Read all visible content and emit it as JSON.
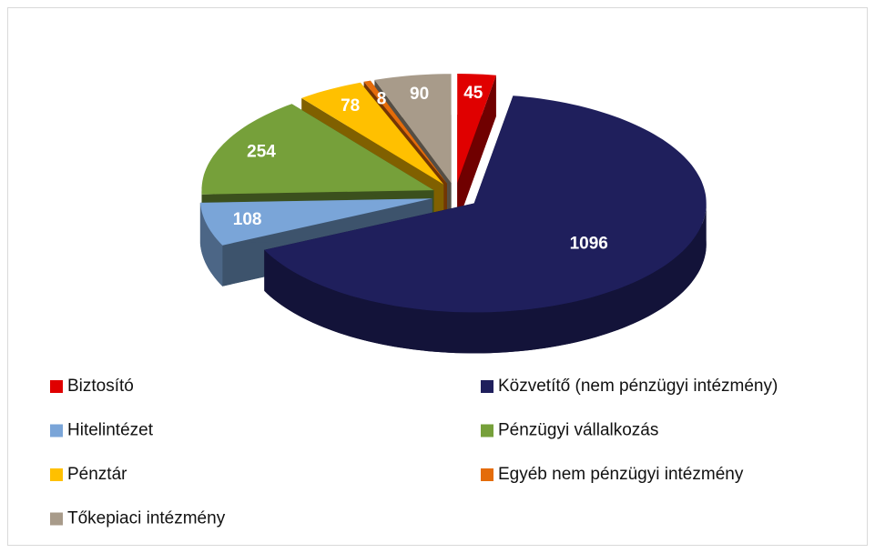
{
  "chart_data": {
    "type": "pie",
    "categories": [
      "Biztosító",
      "Közvetítő (nem pénzügyi intézmény)",
      "Hitelintézet",
      "Pénzügyi vállalkozás",
      "Pénztár",
      "Egyéb nem pénzügyi intézmény",
      "Tőkepiaci intézmény"
    ],
    "values": [
      45,
      1096,
      108,
      254,
      78,
      8,
      90
    ],
    "colors": [
      "#e00000",
      "#1f1f5c",
      "#7aa5d8",
      "#76a03a",
      "#ffc000",
      "#e46c0a",
      "#a89b8a"
    ],
    "exploded": true,
    "three_d": true,
    "legend": "bottom"
  }
}
